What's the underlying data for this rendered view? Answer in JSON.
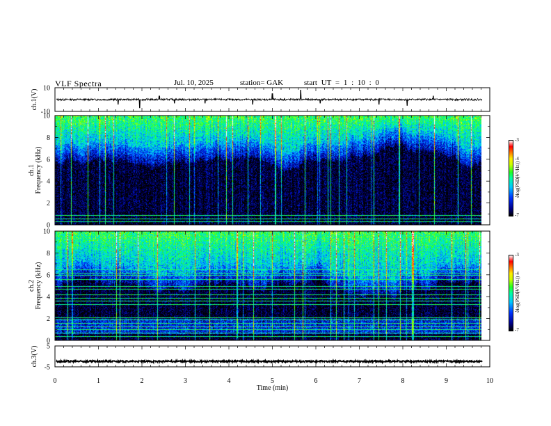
{
  "header": {
    "title": "VLF Spectra",
    "date": "Jul. 10, 2025",
    "station": "station= GAK",
    "start": "start UT = 1 : 10 : 0"
  },
  "colorbars": [
    {
      "label": "log(PSD(V²/Hz))",
      "ticks": [
        "-3",
        "-4",
        "-5",
        "-6",
        "-7"
      ]
    },
    {
      "label": "log(PSD(V²/Hz))",
      "ticks": [
        "-3",
        "-4",
        "-5",
        "-6",
        "-7"
      ]
    }
  ],
  "colors": {
    "background": "#000000",
    "accent": "#00ff66"
  },
  "chart_data": [
    {
      "type": "line",
      "ylabel": "ch.1(V)",
      "ylim": [
        -10,
        10
      ],
      "yticks": [
        "10",
        "-10"
      ],
      "baseline": 0,
      "spikes": [
        [
          1.45,
          -4
        ],
        [
          1.95,
          -7
        ],
        [
          2.4,
          3
        ],
        [
          2.75,
          -3
        ],
        [
          3.45,
          -3
        ],
        [
          4.55,
          -4
        ],
        [
          5.0,
          5
        ],
        [
          5.65,
          8
        ],
        [
          6.1,
          -3
        ],
        [
          7.45,
          -4
        ],
        [
          8.1,
          -5
        ],
        [
          8.7,
          3
        ]
      ]
    },
    {
      "type": "heatmap",
      "ylabel": "ch.1 Frequency (kHz)",
      "ylim": [
        0,
        10
      ],
      "yticks": [
        "0",
        "2",
        "4",
        "6",
        "8",
        "10"
      ],
      "xlim": [
        0,
        10
      ],
      "data_extent_min": 9.83,
      "noise_floor_khz": 7.5,
      "bands_khz": [
        0.3,
        0.6,
        0.9
      ],
      "colorbar_range": [
        -7,
        -3
      ]
    },
    {
      "type": "heatmap",
      "ylabel": "ch.2 Frequency (kHz)",
      "ylim": [
        0,
        10
      ],
      "yticks": [
        "0",
        "2",
        "4",
        "6",
        "8",
        "10"
      ],
      "xlim": [
        0,
        10
      ],
      "data_extent_min": 9.83,
      "noise_floor_khz": 6.5,
      "bands_khz": [
        0.4,
        0.7,
        1.0,
        1.3,
        1.6,
        1.9,
        2.1,
        3.3,
        3.6,
        3.9,
        4.2,
        4.7,
        5.0,
        5.6,
        6.0,
        6.2,
        6.5
      ],
      "colorbar_range": [
        -7,
        -3
      ]
    },
    {
      "type": "line",
      "ylabel": "ch.3(V)",
      "ylim": [
        -5,
        5
      ],
      "yticks": [
        "5",
        "-5"
      ],
      "baseline": -2.4,
      "xlabel": "Time (min)",
      "xlim": [
        0,
        10
      ],
      "xticks": [
        "0",
        "1",
        "2",
        "3",
        "4",
        "5",
        "6",
        "7",
        "8",
        "9",
        "10"
      ]
    }
  ]
}
